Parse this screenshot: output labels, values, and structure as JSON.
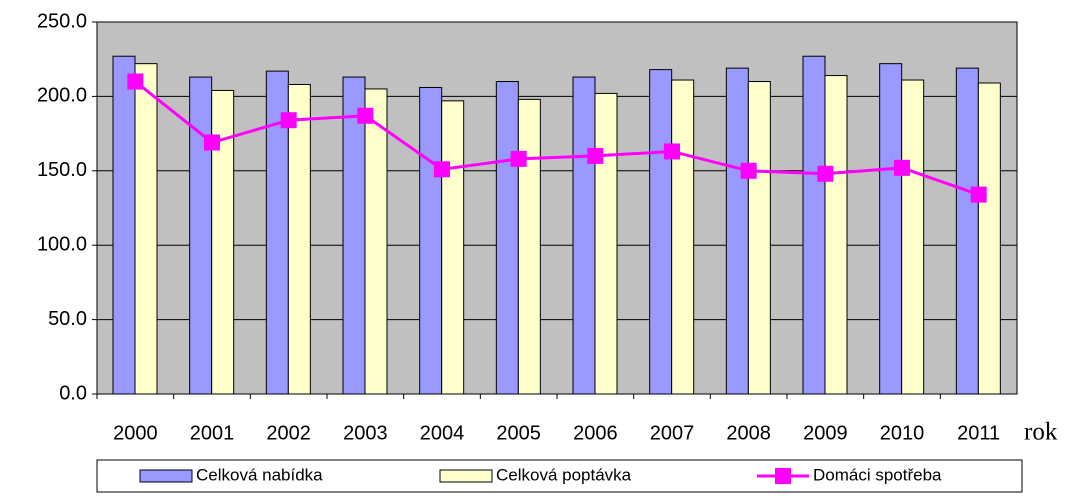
{
  "chart_data": {
    "type": "bar-line",
    "x_label": "rok",
    "categories": [
      "2000",
      "2001",
      "2002",
      "2003",
      "2004",
      "2005",
      "2006",
      "2007",
      "2008",
      "2009",
      "2010",
      "2011"
    ],
    "series": [
      {
        "name": "Celková nabídka",
        "type": "bar",
        "color": "#9999ff",
        "values": [
          227,
          213,
          217,
          213,
          206,
          210,
          213,
          218,
          219,
          227,
          222,
          219
        ]
      },
      {
        "name": "Celková poptávka",
        "type": "bar",
        "color": "#ffffcc",
        "values": [
          222,
          204,
          208,
          205,
          197,
          198,
          202,
          211,
          210,
          214,
          211,
          209
        ]
      },
      {
        "name": "Domáci spotřeba",
        "type": "line",
        "color": "#ff00ff",
        "values": [
          210,
          169,
          184,
          187,
          151,
          158,
          160,
          163,
          150,
          148,
          152,
          134
        ]
      }
    ],
    "ylim": [
      0,
      250
    ],
    "yticks": [
      {
        "value": 0,
        "label": "0.0"
      },
      {
        "value": 50,
        "label": "50.0"
      },
      {
        "value": 100,
        "label": "100.0"
      },
      {
        "value": 150,
        "label": "150.0"
      },
      {
        "value": 200,
        "label": "200.0"
      },
      {
        "value": 250,
        "label": "250.0"
      }
    ],
    "grid": true,
    "plot_background": "#c0c0c0",
    "legend": "bottom"
  }
}
